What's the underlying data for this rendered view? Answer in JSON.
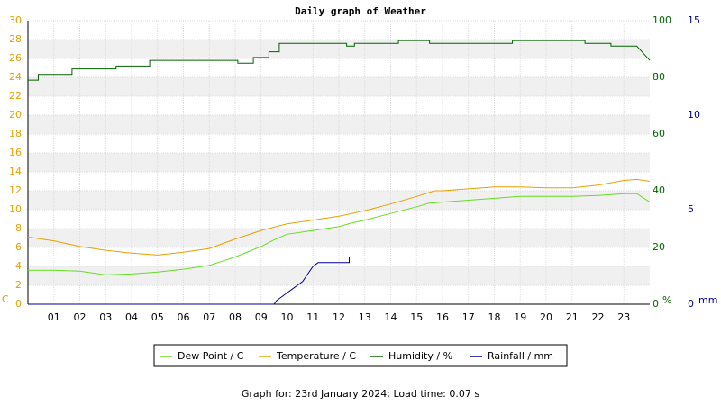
{
  "chart_data": {
    "type": "line",
    "title": "Daily graph of Weather",
    "footer": "Graph for: 23rd January 2024; Load time: 0.07 s",
    "ylabel": "C",
    "y2label": "%",
    "y3label": "mm",
    "xlim": [
      0,
      24
    ],
    "xticks": [
      {
        "value": 1,
        "label": "01"
      },
      {
        "value": 2,
        "label": "02"
      },
      {
        "value": 3,
        "label": "03"
      },
      {
        "value": 4,
        "label": "04"
      },
      {
        "value": 5,
        "label": "05"
      },
      {
        "value": 6,
        "label": "06"
      },
      {
        "value": 7,
        "label": "07"
      },
      {
        "value": 8,
        "label": "08"
      },
      {
        "value": 9,
        "label": "09"
      },
      10,
      11,
      12,
      13,
      14,
      15,
      16,
      17,
      18,
      19,
      20,
      21,
      22,
      23
    ],
    "ylim": [
      0,
      30
    ],
    "yticks": [
      0,
      2,
      4,
      6,
      8,
      10,
      12,
      14,
      16,
      18,
      20,
      22,
      24,
      26,
      28,
      30
    ],
    "y2lim": [
      0,
      100
    ],
    "y2ticks": [
      0,
      20,
      40,
      60,
      80,
      100
    ],
    "y3lim": [
      0,
      15
    ],
    "y3ticks": [
      0,
      5,
      10,
      15
    ],
    "ytick_color": "#e8a000",
    "y2tick_color": "#006400",
    "y3tick_color": "#000090",
    "grid": true,
    "series": [
      {
        "name": "Dew Point / C",
        "color": "#66dd22",
        "x": [
          0,
          1,
          2,
          3,
          4,
          5,
          6,
          7,
          8,
          9,
          9.5,
          10,
          11,
          12,
          12.5,
          13,
          14,
          15,
          15.5,
          16,
          17,
          18,
          19,
          20,
          21,
          22,
          23,
          23.5,
          24
        ],
        "values": [
          3.6,
          3.6,
          3.5,
          3.1,
          3.2,
          3.4,
          3.7,
          4.1,
          5.0,
          6.1,
          6.8,
          7.4,
          7.8,
          8.2,
          8.6,
          8.9,
          9.6,
          10.3,
          10.7,
          10.8,
          11.0,
          11.2,
          11.4,
          11.4,
          11.4,
          11.5,
          11.7,
          11.7,
          10.8
        ]
      },
      {
        "name": "Temperature / C",
        "color": "#e8a000",
        "x": [
          0,
          1,
          2,
          3,
          4,
          5,
          6,
          7,
          8,
          9,
          10,
          11,
          12,
          13,
          14,
          15,
          15.7,
          16,
          17,
          18,
          19,
          20,
          21,
          22,
          23,
          23.5,
          24
        ],
        "values": [
          7.1,
          6.7,
          6.1,
          5.7,
          5.4,
          5.2,
          5.5,
          5.9,
          6.9,
          7.8,
          8.5,
          8.9,
          9.3,
          9.9,
          10.6,
          11.4,
          12.0,
          12.0,
          12.2,
          12.4,
          12.4,
          12.3,
          12.3,
          12.6,
          13.1,
          13.2,
          13.0
        ]
      },
      {
        "name": "Humidity / %",
        "color": "#006400",
        "axis": "y2",
        "x": [
          0,
          0.4,
          0.4,
          1.7,
          1.7,
          3.4,
          3.4,
          4.7,
          4.7,
          8.1,
          8.1,
          8.7,
          8.7,
          9.3,
          9.3,
          9.7,
          9.7,
          12.3,
          12.3,
          12.6,
          12.6,
          14.3,
          14.3,
          15.5,
          15.5,
          18.7,
          18.7,
          21.5,
          21.5,
          22.5,
          22.5,
          23.5,
          23.8,
          24
        ],
        "values": [
          79,
          79,
          81,
          81,
          83,
          83,
          84,
          84,
          86,
          86,
          85,
          85,
          87,
          87,
          89,
          89,
          92,
          92,
          91,
          91,
          92,
          92,
          93,
          93,
          92,
          92,
          93,
          93,
          92,
          92,
          91,
          91,
          88,
          86
        ]
      },
      {
        "name": "Rainfall / mm",
        "color": "#000090",
        "axis": "y3",
        "x": [
          0,
          9.5,
          9.6,
          9.8,
          10.0,
          10.2,
          10.4,
          10.6,
          10.8,
          11.0,
          11.2,
          12.4,
          12.4,
          24
        ],
        "values": [
          0,
          0,
          0.2,
          0.4,
          0.6,
          0.8,
          1.0,
          1.2,
          1.6,
          2.0,
          2.2,
          2.2,
          2.5,
          2.5
        ]
      }
    ]
  }
}
